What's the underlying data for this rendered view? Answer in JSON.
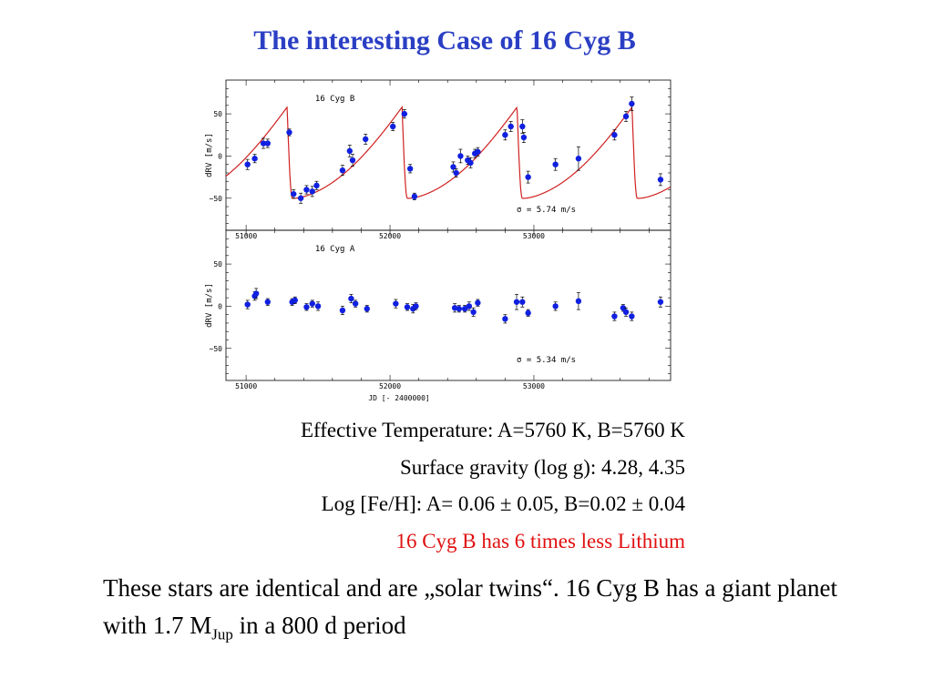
{
  "slide": {
    "title": "The interesting Case of 16 Cyg B",
    "title_color": "#2b3fc4",
    "info_lines": [
      {
        "text": "Effective Temperature: A=5760 K, B=5760 K",
        "color": "#000000"
      },
      {
        "text": "Surface gravity (log g): 4.28, 4.35",
        "color": "#000000"
      },
      {
        "text": "Log [Fe/H]: A= 0.06 ± 0.05, B=0.02 ± 0.04",
        "color": "#000000"
      },
      {
        "text": "16 Cyg B has 6 times less Lithium",
        "color": "#e01010"
      }
    ],
    "summary": {
      "part1": "These stars are identical and are „solar twins“. 16 Cyg B has a giant planet with 1.7 M",
      "sub": "Jup",
      "part2": " in a 800 d period"
    }
  },
  "chart_data": [
    {
      "type": "scatter",
      "panel_label": "16 Cyg B",
      "ylabel": "dRV [m/s]",
      "xlabel": "",
      "xlim": [
        50860,
        53950
      ],
      "ylim": [
        -88,
        90
      ],
      "xticks": [
        51000,
        52000,
        53000
      ],
      "yticks": [
        50,
        0,
        -50
      ],
      "annotation": "σ = 5.74  m/s",
      "marker_color": "#1020e0",
      "model_curve_color": "#d02020",
      "has_model_curve": true,
      "x": [
        51010,
        51060,
        51120,
        51150,
        51300,
        51330,
        51380,
        51420,
        51460,
        51490,
        51670,
        51720,
        51740,
        51830,
        52020,
        52100,
        52140,
        52170,
        52440,
        52460,
        52490,
        52540,
        52560,
        52590,
        52610,
        52800,
        52840,
        52920,
        52930,
        52960,
        53150,
        53310,
        53560,
        53640,
        53680,
        53880
      ],
      "y": [
        -10,
        -3,
        15,
        15,
        28,
        -45,
        -50,
        -40,
        -42,
        -35,
        -17,
        6,
        -5,
        20,
        35,
        50,
        -15,
        -48,
        -13,
        -20,
        0,
        -5,
        -8,
        3,
        5,
        25,
        35,
        35,
        22,
        -25,
        -10,
        -3,
        25,
        47,
        62,
        -28
      ],
      "err": [
        6,
        5,
        6,
        5,
        4,
        5,
        6,
        5,
        6,
        5,
        6,
        7,
        7,
        6,
        5,
        5,
        5,
        4,
        6,
        5,
        8,
        5,
        6,
        5,
        5,
        6,
        6,
        8,
        6,
        7,
        7,
        14,
        6,
        6,
        8,
        7
      ]
    },
    {
      "type": "scatter",
      "panel_label": "16 Cyg A",
      "ylabel": "dRV [m/s]",
      "xlabel": "JD  [- 2400000]",
      "xlim": [
        50860,
        53950
      ],
      "ylim": [
        -88,
        90
      ],
      "xticks": [
        51000,
        52000,
        53000
      ],
      "yticks": [
        50,
        0,
        -50
      ],
      "annotation": "σ = 5.34  m/s",
      "marker_color": "#1020e0",
      "has_model_curve": false,
      "x": [
        51010,
        51060,
        51070,
        51150,
        51320,
        51340,
        51420,
        51460,
        51500,
        51670,
        51730,
        51760,
        51840,
        52040,
        52120,
        52160,
        52180,
        52450,
        52480,
        52520,
        52550,
        52580,
        52610,
        52800,
        52880,
        52920,
        52960,
        53150,
        53310,
        53560,
        53620,
        53640,
        53680,
        53880
      ],
      "y": [
        2,
        12,
        15,
        5,
        5,
        7,
        -1,
        3,
        0,
        -5,
        9,
        3,
        -3,
        3,
        -1,
        -3,
        0,
        -2,
        -3,
        -3,
        0,
        -7,
        4,
        -15,
        5,
        5,
        -8,
        0,
        6,
        -12,
        -2,
        -7,
        -12,
        5
      ],
      "err": [
        5,
        5,
        6,
        4,
        4,
        4,
        4,
        4,
        5,
        5,
        5,
        4,
        4,
        5,
        4,
        5,
        4,
        5,
        4,
        4,
        5,
        5,
        4,
        5,
        9,
        6,
        4,
        5,
        10,
        5,
        4,
        5,
        5,
        6
      ]
    }
  ]
}
